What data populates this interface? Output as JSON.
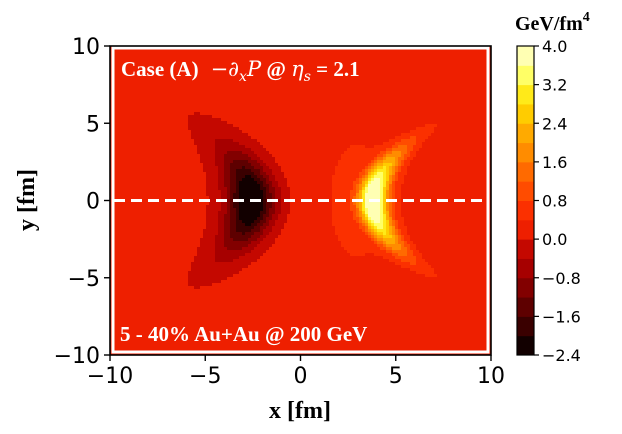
{
  "chart_data": {
    "type": "heatmap",
    "subtype": "filled-contour",
    "title": "",
    "annotation_top_left": {
      "case": "Case (A)",
      "quantity": "−∂",
      "quantity_sub": "x",
      "quantity_var": "P",
      "at": " @ ",
      "eta": "η",
      "eta_sub": "s",
      "eta_value": " = 2.1"
    },
    "annotation_bottom_left": "5 - 40% Au+Au @ 200 GeV",
    "xlabel": "x [fm]",
    "ylabel": "y [fm]",
    "xlim": [
      -10,
      10
    ],
    "ylim": [
      -10,
      10
    ],
    "xticks": [
      -10,
      -5,
      0,
      5,
      10
    ],
    "xtick_labels": [
      "−10",
      "−5",
      "0",
      "5",
      "10"
    ],
    "yticks": [
      -10,
      -5,
      0,
      5,
      10
    ],
    "ytick_labels": [
      "−10",
      "−5",
      "0",
      "5",
      "10"
    ],
    "reference_line": {
      "y": 0,
      "style": "dashed",
      "color": "#ffffff"
    },
    "colorbar": {
      "title": "GeV/fm",
      "title_sup": "4",
      "ticks": [
        4.0,
        3.2,
        2.4,
        1.6,
        0.8,
        0.0,
        -0.8,
        -1.6,
        -2.4
      ],
      "tick_labels": [
        "4.0",
        "3.2",
        "2.4",
        "1.6",
        "0.8",
        "0.0",
        "−0.8",
        "−1.6",
        "−2.4"
      ],
      "levels": [
        -2.4,
        -2.0,
        -1.6,
        -1.2,
        -0.8,
        -0.4,
        0.0,
        0.4,
        0.8,
        1.2,
        1.6,
        2.0,
        2.4,
        2.8,
        3.2,
        3.6,
        4.0
      ],
      "colors": [
        "#120000",
        "#3a0000",
        "#5e0000",
        "#820000",
        "#a60000",
        "#c40800",
        "#ee1f00",
        "#fb3000",
        "#ff4c00",
        "#ff6a00",
        "#ff8c00",
        "#ffaa00",
        "#ffcc00",
        "#ffea19",
        "#ffff66",
        "#ffffb3"
      ]
    },
    "field_model": {
      "background": 0.1,
      "features": [
        {
          "name": "negative-lobe",
          "x0": -2.6,
          "y0": 0.0,
          "sx": 1.25,
          "sy": 3.1,
          "amp": -2.75,
          "curve": -0.09
        },
        {
          "name": "positive-lobe",
          "x0": 3.8,
          "y0": 0.0,
          "sx": 0.75,
          "sy": 3.0,
          "amp": 4.1,
          "curve": 0.13
        },
        {
          "name": "outer-shell",
          "x0": 3.0,
          "y0": 0.0,
          "sx": 2.9,
          "sy": 7.5,
          "amp": 0.38,
          "curve": 0.0
        }
      ]
    }
  }
}
